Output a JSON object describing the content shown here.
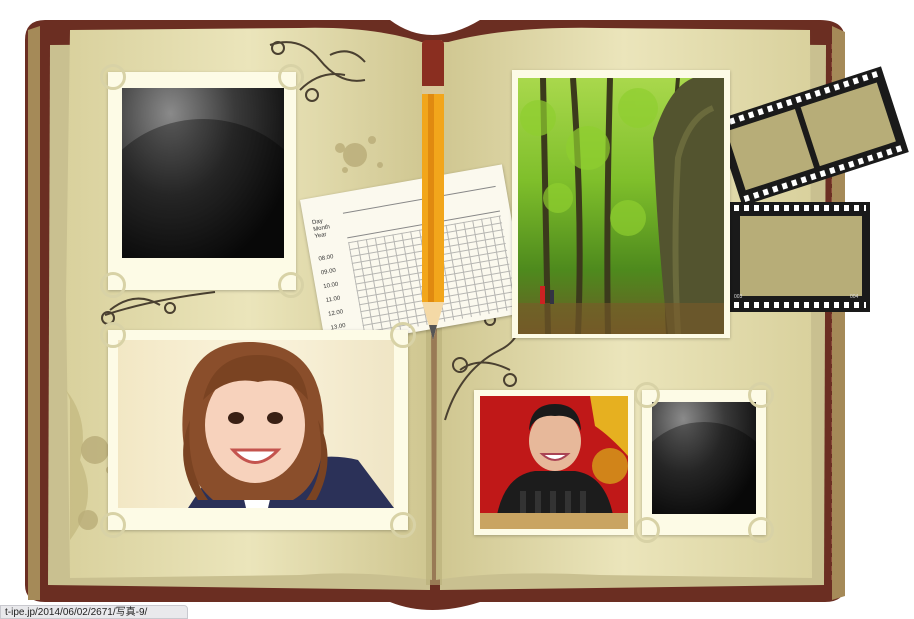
{
  "status_bar": {
    "url": "t-ipe.jp/2014/06/02/2671/写真-9/"
  },
  "note_card": {
    "fields": [
      "Day",
      "Month",
      "Year"
    ],
    "times": [
      "08.00",
      "09.00",
      "10.00",
      "11.00",
      "12.00",
      "13.00"
    ]
  },
  "film_strip": {
    "frame_labels": [
      "003",
      "004"
    ]
  },
  "photos": {
    "top_left": "empty",
    "girl": "portrait",
    "forest": "landscape",
    "man": "portrait",
    "bottom_right": "empty"
  },
  "colors": {
    "cover": "#6b2e22",
    "page": "#e8e2b4",
    "frame": "#fdfbe6",
    "pencil": "#f2a61b"
  }
}
